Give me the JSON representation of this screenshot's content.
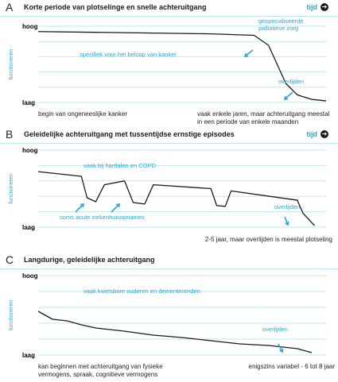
{
  "colors": {
    "accent": "#2aa7d6",
    "grid": "#bfe7f3",
    "curve": "#1a1a1a"
  },
  "tijd_icon": "arrow-right-circle-icon",
  "panels": [
    {
      "letter": "A",
      "title": "Korte periode van plotselinge en snelle achteruitgang",
      "tijd": "tijd",
      "ylabel": "functioneren",
      "high": "hoog",
      "low": "laag",
      "annotations": [
        "specifiek voor het beloop van kanker",
        "gespecialiseerde palliatieve zorg",
        "overlijden"
      ],
      "caption_left": "begin van ongeneeslijke kanker",
      "caption_right": "vaak enkele jaren, maar achteruitgang meestal in een periode van enkele maanden"
    },
    {
      "letter": "B",
      "title": "Geleidelijke achteruitgang met tussentijdse ernstige episodes",
      "tijd": "tijd",
      "ylabel": "functioneren",
      "high": "hoog",
      "low": "laag",
      "annotations": [
        "vaak bij hartfalen en COPD",
        "soms acute ziekenhuisopnames",
        "overlijden"
      ],
      "caption_left": "",
      "caption_right": "2-5 jaar, maar overlijden is meestal plotseling"
    },
    {
      "letter": "C",
      "title": "Langdurige, geleidelijke achteruitgang",
      "tijd": "tijd",
      "ylabel": "functioneren",
      "high": "hoog",
      "low": "laag",
      "annotations": [
        "vaak kwetsbare ouderen en dementerenden",
        "overlijden"
      ],
      "caption_left": "kan beginnen met achteruitgang van fysieke vermogens, spraak, cognitieve vermogens",
      "caption_right": "enigszins variabel - 6 tot 8 jaar"
    }
  ],
  "chart_data": [
    {
      "type": "line",
      "title": "Korte periode van plotselinge en snelle achteruitgang",
      "xlabel": "tijd",
      "ylabel": "functioneren",
      "ylim": [
        0,
        1
      ],
      "x": [
        0,
        0.2,
        0.4,
        0.6,
        0.75,
        0.8,
        0.83,
        0.86,
        0.9,
        0.95,
        1.0
      ],
      "series": [
        {
          "values": [
            0.93,
            0.92,
            0.91,
            0.9,
            0.88,
            0.75,
            0.5,
            0.25,
            0.1,
            0.04,
            0.02
          ]
        }
      ],
      "grid": true
    },
    {
      "type": "line",
      "title": "Geleidelijke achteruitgang met tussentijdse ernstige episodes",
      "xlabel": "tijd",
      "ylabel": "functioneren",
      "ylim": [
        0,
        1
      ],
      "x": [
        0,
        0.15,
        0.17,
        0.2,
        0.23,
        0.3,
        0.33,
        0.37,
        0.4,
        0.6,
        0.62,
        0.65,
        0.67,
        0.9,
        0.92,
        0.96
      ],
      "series": [
        {
          "values": [
            0.72,
            0.66,
            0.38,
            0.33,
            0.55,
            0.6,
            0.32,
            0.3,
            0.55,
            0.5,
            0.28,
            0.27,
            0.47,
            0.35,
            0.18,
            0.02
          ]
        }
      ],
      "grid": true
    },
    {
      "type": "line",
      "title": "Langdurige, geleidelijke achteruitgang",
      "xlabel": "tijd",
      "ylabel": "functioneren",
      "ylim": [
        0,
        1
      ],
      "x": [
        0,
        0.05,
        0.1,
        0.15,
        0.2,
        0.3,
        0.4,
        0.5,
        0.6,
        0.7,
        0.8,
        0.9,
        0.95
      ],
      "series": [
        {
          "values": [
            0.55,
            0.45,
            0.43,
            0.38,
            0.34,
            0.3,
            0.25,
            0.22,
            0.18,
            0.14,
            0.12,
            0.08,
            0.03
          ]
        }
      ],
      "grid": true
    }
  ]
}
